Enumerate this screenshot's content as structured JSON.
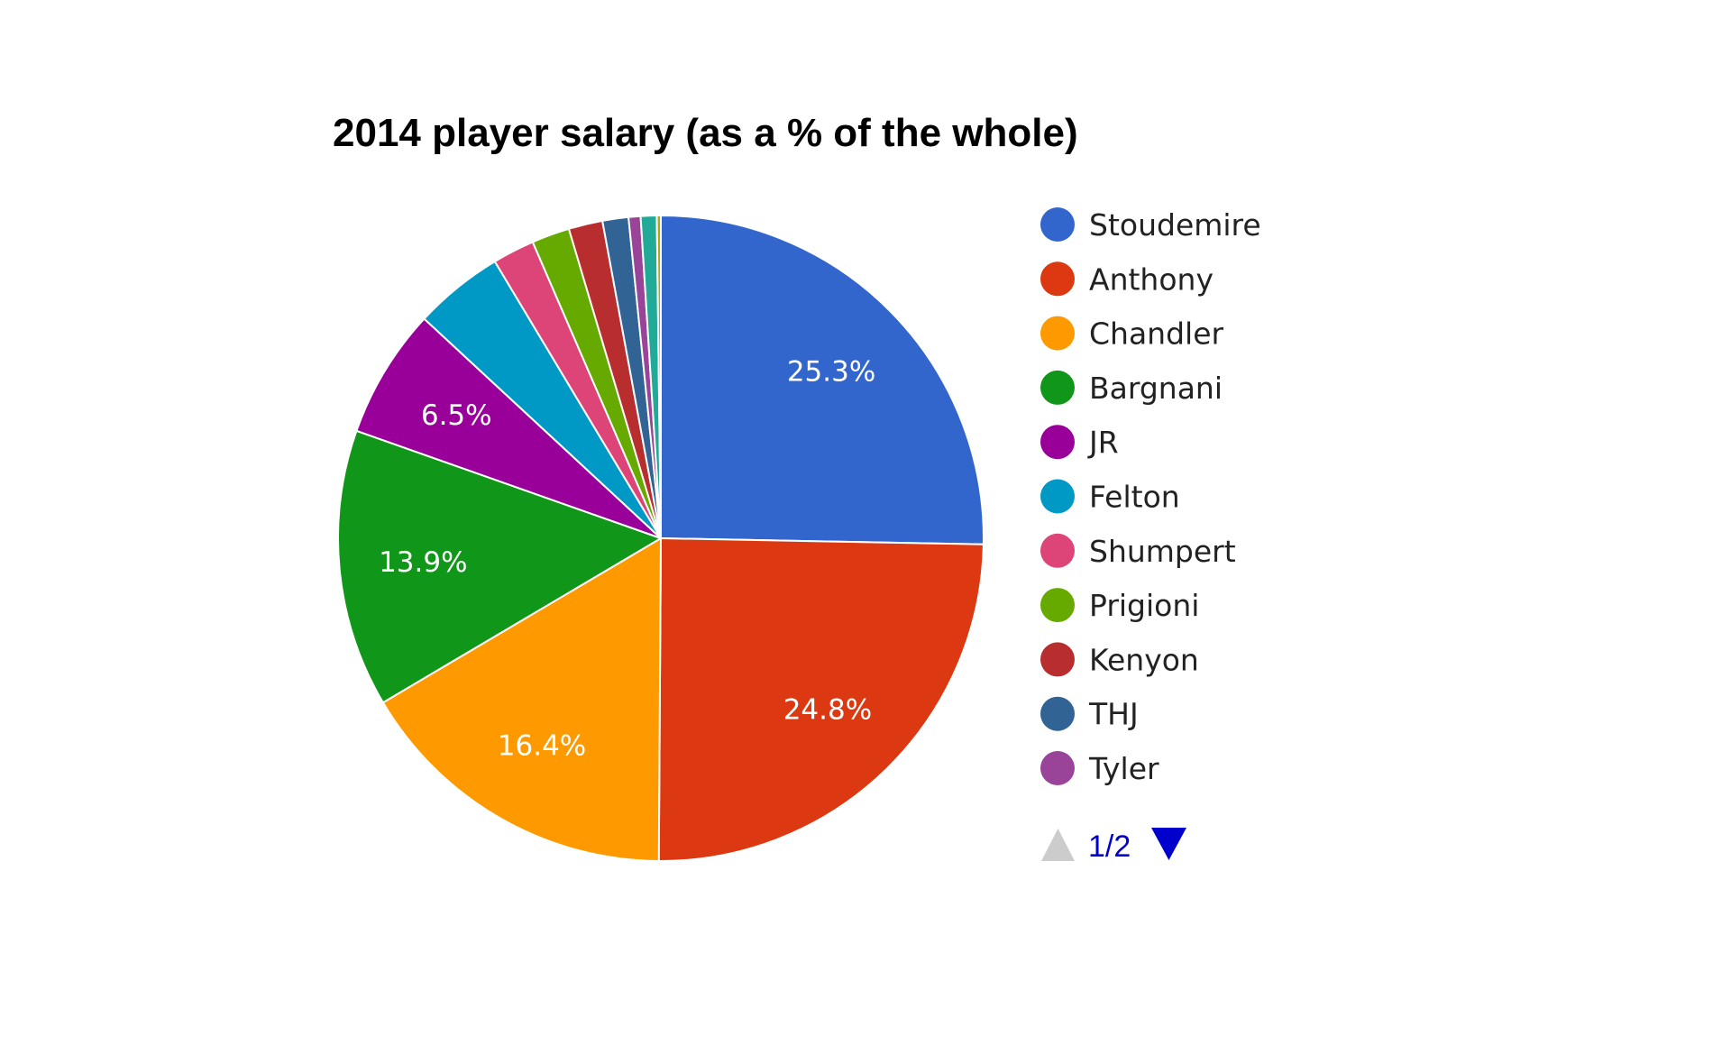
{
  "chart_data": {
    "type": "pie",
    "title": "2014 player salary (as a % of the whole)",
    "legend_position": "right",
    "slices": [
      {
        "name": "Stoudemire",
        "value": 25.3,
        "label": "25.3%",
        "color": "#3366cc"
      },
      {
        "name": "Anthony",
        "value": 24.8,
        "label": "24.8%",
        "color": "#dc3912"
      },
      {
        "name": "Chandler",
        "value": 16.4,
        "label": "16.4%",
        "color": "#ff9900"
      },
      {
        "name": "Bargnani",
        "value": 13.9,
        "label": "13.9%",
        "color": "#109618"
      },
      {
        "name": "JR",
        "value": 6.5,
        "label": "6.5%",
        "color": "#990099"
      },
      {
        "name": "Felton",
        "value": 4.5,
        "label": "",
        "color": "#0099c6"
      },
      {
        "name": "Shumpert",
        "value": 2.1,
        "label": "",
        "color": "#dd4477"
      },
      {
        "name": "Prigioni",
        "value": 1.9,
        "label": "",
        "color": "#66aa00"
      },
      {
        "name": "Kenyon",
        "value": 1.7,
        "label": "",
        "color": "#b82e2e"
      },
      {
        "name": "THJ",
        "value": 1.3,
        "label": "",
        "color": "#316395"
      },
      {
        "name": "Tyler",
        "value": 0.6,
        "label": "",
        "color": "#994499"
      },
      {
        "name": "",
        "value": 0.8,
        "label": "",
        "color": "#22aa99"
      },
      {
        "name": "",
        "value": 0.2,
        "label": "",
        "color": "#aaaa11"
      }
    ],
    "legend_visible_count": 11,
    "legend_page": "1/2"
  },
  "pager": {
    "up_color": "#cccccc",
    "down_color": "#0000cc"
  }
}
